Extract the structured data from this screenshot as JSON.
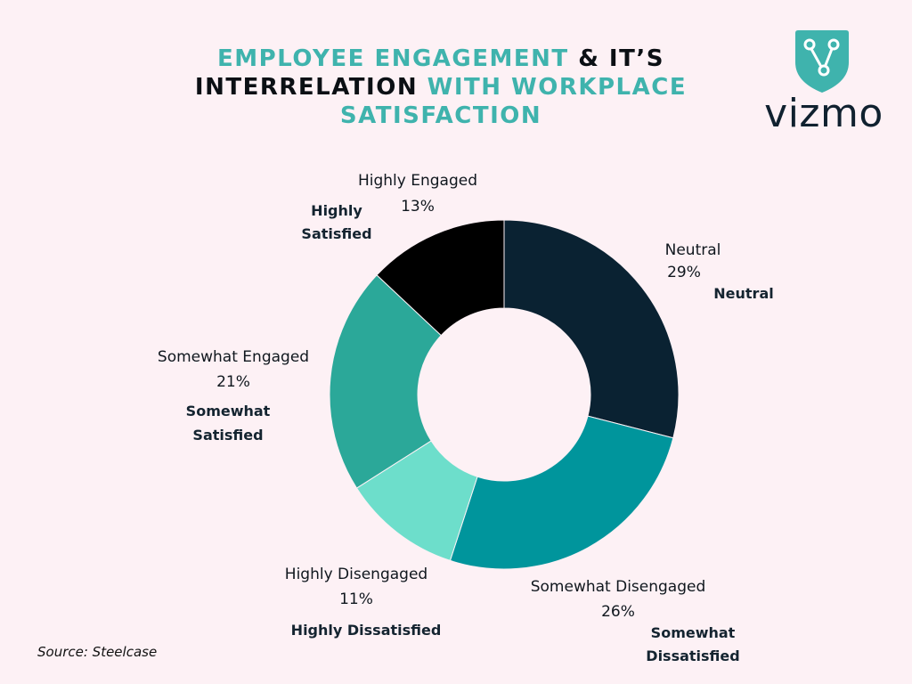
{
  "title": {
    "part1": "Employee Engagement",
    "part2": " & It’s ",
    "part3": "Interrelation",
    "part4": " with Workplace Satisfaction"
  },
  "logo": {
    "text": "vizmo",
    "icon": "vizmo-shield-icon"
  },
  "source": "Source: Steelcase",
  "colors": {
    "background": "#fdf1f5",
    "title_teal": "#3fb3ad",
    "title_dark": "#0b0f14"
  },
  "chart_data": {
    "type": "pie",
    "donut": true,
    "categories": [
      "Neutral",
      "Somewhat Disengaged",
      "Highly Disengaged",
      "Somewhat Engaged",
      "Highly Engaged"
    ],
    "values": [
      29,
      26,
      11,
      21,
      13
    ],
    "value_labels": [
      "29%",
      "26%",
      "11%",
      "21%",
      "13%"
    ],
    "satisfaction_labels": [
      [
        "Neutral"
      ],
      [
        "Somewhat",
        "Dissatisfied"
      ],
      [
        "Highly Dissatisfied"
      ],
      [
        "Somewhat",
        "Satisfied"
      ],
      [
        "Highly",
        "Satisfied"
      ]
    ],
    "colors": [
      "#0a2232",
      "#00959c",
      "#6ddecb",
      "#2ba899",
      "#000000"
    ]
  }
}
